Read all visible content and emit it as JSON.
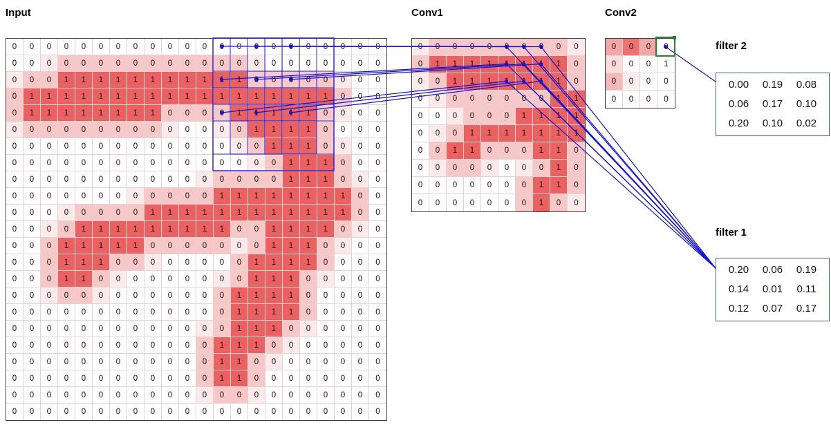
{
  "labels": {
    "input": "Input",
    "conv1": "Conv1",
    "conv2": "Conv2"
  },
  "colors": {
    "heat": "#E84444",
    "overlay": "#1212D8",
    "highlight_box": "#2E7D32",
    "filter_border": "#4353C8"
  },
  "grids": {
    "input": {
      "cols": 22,
      "rows": 23,
      "shade": "auto",
      "values": [
        "0000000000000000000000",
        "0000000000000000000000",
        "0001111111111100000000",
        "0111111111111111111000",
        "0111111110000111110000",
        "0000000000000011110000",
        "0000000000000001110000",
        "0000000000000000111000",
        "0000000000000000111000",
        "0000000000001111111100",
        "0000000011111111111100",
        "0000111111111001111000",
        "0001111100000001110000",
        "0001110000000011110000",
        "0001100000000011100000",
        "0000000000000111100000",
        "0000000000000111100000",
        "0000000000000111000000",
        "0000000000001110000000",
        "0000000000001100000000",
        "0000000000001100000000",
        "0000000000000000000000",
        "0000000000000000000000"
      ]
    },
    "conv1": {
      "cols": 10,
      "rows": 10,
      "shade": "auto",
      "values": [
        "0000000000",
        "0111111110",
        "0011111110",
        "0000000011",
        "0000001111",
        "0001111111",
        "0011000110",
        "0000000010",
        "0000000110",
        "0000000100"
      ]
    },
    "conv2": {
      "cols": 4,
      "rows": 4,
      "shade": [
        "5850",
        "2000",
        "4100",
        "0000"
      ],
      "values": [
        "0000",
        "0001",
        "0000",
        "0000"
      ]
    }
  },
  "filters": {
    "filter2": {
      "label": "filter 2",
      "values": [
        [
          "0.00",
          "0.19",
          "0.08"
        ],
        [
          "0.06",
          "0.17",
          "0.10"
        ],
        [
          "0.20",
          "0.10",
          "0.02"
        ]
      ]
    },
    "filter1": {
      "label": "filter 1",
      "values": [
        [
          "0.20",
          "0.06",
          "0.19"
        ],
        [
          "0.14",
          "0.01",
          "0.11"
        ],
        [
          "0.12",
          "0.07",
          "0.17"
        ]
      ]
    }
  },
  "overlay": {
    "input_receptive_field": {
      "rows": [
        0,
        7
      ],
      "cols": [
        12,
        18
      ]
    },
    "input_band_rows": [
      [
        0,
        2
      ],
      [
        2,
        4
      ],
      [
        4,
        6
      ]
    ],
    "input_subfield_cols": [
      [
        12,
        14
      ],
      [
        13,
        15
      ],
      [
        14,
        16
      ],
      [
        15,
        17
      ],
      [
        16,
        18
      ]
    ],
    "input_sample_points": {
      "rows": [
        0,
        2,
        4
      ],
      "cols": [
        12,
        14,
        16
      ]
    },
    "conv1_patch": {
      "rows": [
        0,
        2
      ],
      "cols": [
        5,
        7
      ]
    },
    "conv2_target": {
      "row": 0,
      "col": 3
    }
  }
}
